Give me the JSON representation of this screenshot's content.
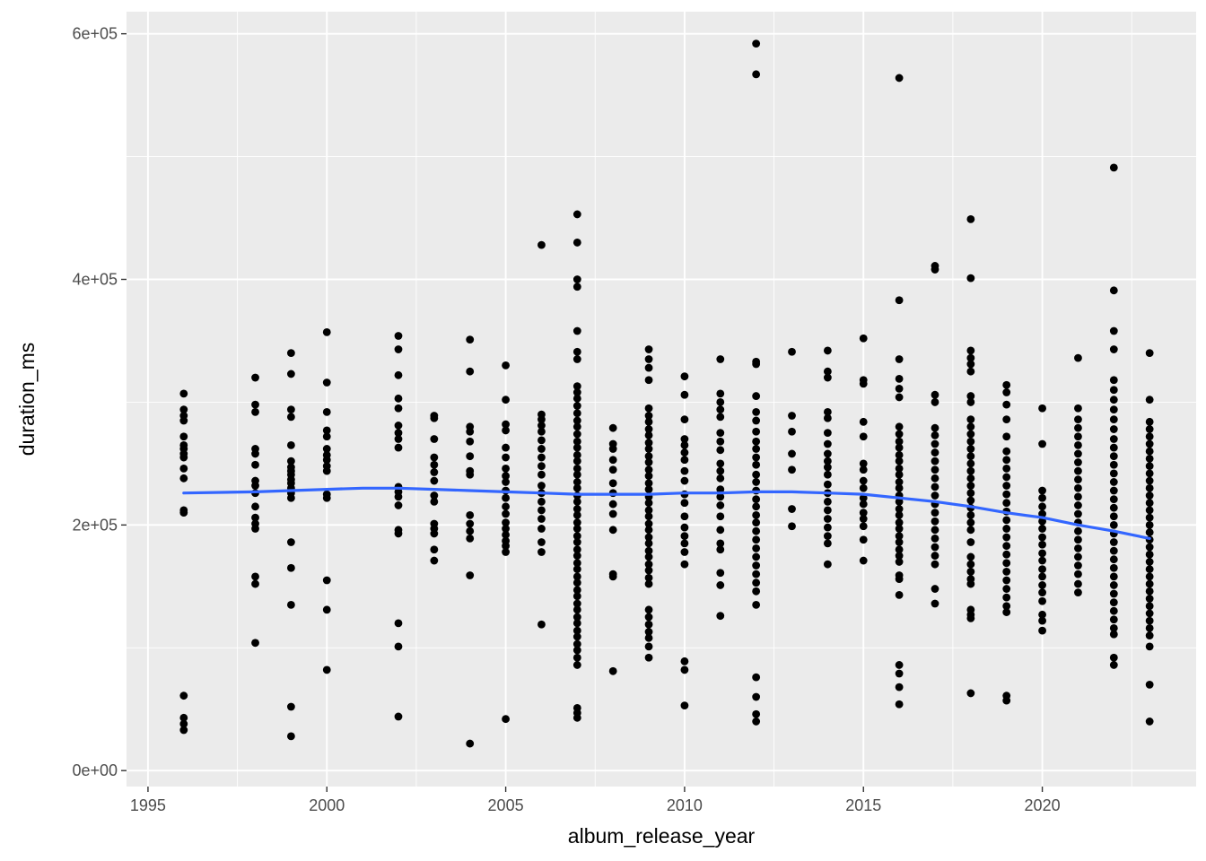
{
  "chart_data": {
    "type": "scatter",
    "title": "",
    "xlabel": "album_release_year",
    "ylabel": "duration_ms",
    "xlim": [
      1994.4,
      2024.3
    ],
    "ylim": [
      -13000,
      618000
    ],
    "x_ticks": [
      1995,
      2000,
      2005,
      2010,
      2015,
      2020
    ],
    "x_tick_labels": [
      "1995",
      "2000",
      "2005",
      "2010",
      "2015",
      "2020"
    ],
    "y_ticks": [
      0,
      200000,
      400000,
      600000
    ],
    "y_tick_labels": [
      "0e+00",
      "2e+05",
      "4e+05",
      "6e+05"
    ],
    "grid": true,
    "legend": "none",
    "colors": {
      "panel": "#ebebeb",
      "grid": "#ffffff",
      "points": "#000000",
      "smooth": "#3366ff"
    },
    "series": [
      {
        "kind": "points",
        "groups": [
          {
            "x": 1996,
            "y": [
              307000,
              294000,
              289000,
              285000,
              272000,
              265000,
              262000,
              258000,
              255000,
              246000,
              238000,
              212000,
              210000,
              61000,
              43000,
              38000,
              33000
            ]
          },
          {
            "x": 1998,
            "y": [
              320000,
              298000,
              292000,
              262000,
              258000,
              249000,
              236000,
              232000,
              226000,
              215000,
              206000,
              201000,
              197000,
              158000,
              152000,
              104000
            ]
          },
          {
            "x": 1999,
            "y": [
              340000,
              323000,
              294000,
              288000,
              265000,
              252000,
              247000,
              244000,
              241000,
              237000,
              234000,
              230000,
              226000,
              222000,
              186000,
              165000,
              135000,
              52000,
              28000
            ]
          },
          {
            "x": 2000,
            "y": [
              357000,
              316000,
              292000,
              277000,
              272000,
              262000,
              257000,
              253000,
              248000,
              244000,
              225000,
              222000,
              155000,
              131000,
              82000
            ]
          },
          {
            "x": 2002,
            "y": [
              354000,
              343000,
              322000,
              303000,
              295000,
              281000,
              275000,
              270000,
              263000,
              231000,
              227000,
              223000,
              216000,
              196000,
              193000,
              120000,
              101000,
              44000
            ]
          },
          {
            "x": 2003,
            "y": [
              289000,
              287000,
              270000,
              255000,
              249000,
              243000,
              236000,
              224000,
              219000,
              201000,
              197000,
              193000,
              180000,
              171000
            ]
          },
          {
            "x": 2004,
            "y": [
              351000,
              325000,
              280000,
              276000,
              268000,
              256000,
              244000,
              241000,
              208000,
              201000,
              195000,
              189000,
              159000,
              22000
            ]
          },
          {
            "x": 2005,
            "y": [
              330000,
              302000,
              282000,
              277000,
              263000,
              255000,
              246000,
              240000,
              235000,
              228000,
              222000,
              215000,
              209000,
              202000,
              197000,
              192000,
              187000,
              183000,
              178000,
              42000
            ]
          },
          {
            "x": 2006,
            "y": [
              428000,
              290000,
              286000,
              281000,
              276000,
              269000,
              262000,
              255000,
              248000,
              241000,
              232000,
              226000,
              219000,
              212000,
              205000,
              197000,
              186000,
              178000,
              119000
            ]
          },
          {
            "x": 2007,
            "y": [
              453000,
              430000,
              400000,
              394000,
              358000,
              341000,
              335000,
              313000,
              308000,
              303000,
              297000,
              291000,
              285000,
              280000,
              274000,
              268000,
              263000,
              257000,
              252000,
              246000,
              241000,
              235000,
              230000,
              224000,
              219000,
              213000,
              208000,
              202000,
              197000,
              191000,
              186000,
              180000,
              175000,
              169000,
              164000,
              158000,
              153000,
              147000,
              142000,
              136000,
              131000,
              125000,
              120000,
              114000,
              109000,
              103000,
              98000,
              92000,
              86000,
              51000,
              47000,
              43000
            ]
          },
          {
            "x": 2008,
            "y": [
              279000,
              266000,
              262000,
              253000,
              245000,
              234000,
              226000,
              217000,
              209000,
              196000,
              160000,
              158000,
              81000
            ]
          },
          {
            "x": 2009,
            "y": [
              343000,
              335000,
              328000,
              318000,
              295000,
              289000,
              284000,
              278000,
              273000,
              267000,
              262000,
              256000,
              251000,
              245000,
              240000,
              234000,
              229000,
              223000,
              218000,
              212000,
              207000,
              201000,
              196000,
              190000,
              185000,
              179000,
              174000,
              168000,
              163000,
              157000,
              152000,
              131000,
              125000,
              119000,
              113000,
              108000,
              101000,
              92000
            ]
          },
          {
            "x": 2010,
            "y": [
              321000,
              306000,
              286000,
              270000,
              265000,
              259000,
              253000,
              244000,
              236000,
              225000,
              218000,
              207000,
              198000,
              191000,
              185000,
              178000,
              168000,
              89000,
              82000,
              53000
            ]
          },
          {
            "x": 2011,
            "y": [
              335000,
              307000,
              300000,
              294000,
              288000,
              275000,
              268000,
              261000,
              250000,
              244000,
              238000,
              229000,
              223000,
              216000,
              207000,
              196000,
              185000,
              180000,
              161000,
              151000,
              126000
            ]
          },
          {
            "x": 2012,
            "y": [
              592000,
              567000,
              333000,
              331000,
              305000,
              292000,
              285000,
              276000,
              268000,
              262000,
              255000,
              249000,
              241000,
              235000,
              228000,
              221000,
              215000,
              208000,
              202000,
              195000,
              188000,
              181000,
              174000,
              167000,
              160000,
              153000,
              146000,
              135000,
              76000,
              60000,
              46000,
              40000
            ]
          },
          {
            "x": 2013,
            "y": [
              341000,
              289000,
              276000,
              258000,
              245000,
              213000,
              199000
            ]
          },
          {
            "x": 2014,
            "y": [
              342000,
              325000,
              320000,
              292000,
              287000,
              275000,
              266000,
              258000,
              252000,
              247000,
              241000,
              233000,
              226000,
              219000,
              212000,
              205000,
              198000,
              191000,
              185000,
              168000
            ]
          },
          {
            "x": 2015,
            "y": [
              352000,
              318000,
              315000,
              284000,
              272000,
              250000,
              245000,
              236000,
              230000,
              222000,
              217000,
              210000,
              205000,
              199000,
              188000,
              171000
            ]
          },
          {
            "x": 2016,
            "y": [
              564000,
              383000,
              335000,
              319000,
              311000,
              304000,
              280000,
              274000,
              268000,
              263000,
              257000,
              252000,
              246000,
              241000,
              235000,
              230000,
              224000,
              219000,
              213000,
              208000,
              202000,
              197000,
              191000,
              186000,
              180000,
              175000,
              170000,
              159000,
              156000,
              143000,
              86000,
              79000,
              68000,
              54000
            ]
          },
          {
            "x": 2017,
            "y": [
              411000,
              408000,
              306000,
              300000,
              279000,
              273000,
              266000,
              259000,
              252000,
              245000,
              238000,
              231000,
              224000,
              217000,
              210000,
              203000,
              196000,
              189000,
              182000,
              175000,
              168000,
              148000,
              136000
            ]
          },
          {
            "x": 2018,
            "y": [
              449000,
              401000,
              342000,
              336000,
              331000,
              325000,
              305000,
              300000,
              286000,
              280000,
              274000,
              268000,
              262000,
              256000,
              250000,
              244000,
              238000,
              232000,
              226000,
              220000,
              214000,
              208000,
              202000,
              196000,
              186000,
              174000,
              168000,
              162000,
              156000,
              152000,
              131000,
              127000,
              124000,
              63000
            ]
          },
          {
            "x": 2019,
            "y": [
              314000,
              308000,
              298000,
              286000,
              272000,
              260000,
              253000,
              246000,
              239000,
              232000,
              225000,
              218000,
              211000,
              204000,
              197000,
              190000,
              183000,
              176000,
              169000,
              162000,
              155000,
              148000,
              141000,
              134000,
              129000,
              61000,
              57000
            ]
          },
          {
            "x": 2020,
            "y": [
              295000,
              266000,
              228000,
              222000,
              215000,
              209000,
              203000,
              197000,
              190000,
              184000,
              177000,
              171000,
              164000,
              158000,
              151000,
              145000,
              138000,
              127000,
              122000,
              114000
            ]
          },
          {
            "x": 2021,
            "y": [
              336000,
              295000,
              286000,
              279000,
              272000,
              265000,
              258000,
              251000,
              244000,
              237000,
              230000,
              223000,
              216000,
              209000,
              202000,
              195000,
              188000,
              181000,
              174000,
              167000,
              160000,
              152000,
              145000
            ]
          },
          {
            "x": 2022,
            "y": [
              491000,
              391000,
              358000,
              343000,
              318000,
              310000,
              302000,
              294000,
              286000,
              278000,
              270000,
              263000,
              256000,
              249000,
              242000,
              235000,
              228000,
              221000,
              214000,
              207000,
              200000,
              193000,
              186000,
              179000,
              172000,
              165000,
              158000,
              151000,
              144000,
              137000,
              130000,
              123000,
              116000,
              111000,
              92000,
              86000
            ]
          },
          {
            "x": 2023,
            "y": [
              340000,
              302000,
              284000,
              278000,
              272000,
              266000,
              260000,
              254000,
              248000,
              242000,
              236000,
              230000,
              224000,
              218000,
              212000,
              206000,
              200000,
              194000,
              188000,
              182000,
              176000,
              170000,
              164000,
              158000,
              152000,
              146000,
              140000,
              134000,
              128000,
              122000,
              116000,
              110000,
              101000,
              70000,
              40000
            ]
          }
        ]
      },
      {
        "kind": "smooth",
        "x": [
          1996,
          1998,
          2000,
          2001,
          2002,
          2003,
          2004,
          2005,
          2006,
          2007,
          2008,
          2009,
          2010,
          2011,
          2012,
          2013,
          2014,
          2015,
          2016,
          2017,
          2018,
          2019,
          2020,
          2021,
          2022,
          2023
        ],
        "y": [
          226000,
          227000,
          229000,
          230000,
          230000,
          229000,
          228000,
          227000,
          226000,
          225000,
          225000,
          225000,
          226000,
          226000,
          227000,
          227000,
          226000,
          225000,
          222000,
          219000,
          215000,
          210000,
          206000,
          200000,
          195000,
          189000
        ]
      }
    ]
  }
}
